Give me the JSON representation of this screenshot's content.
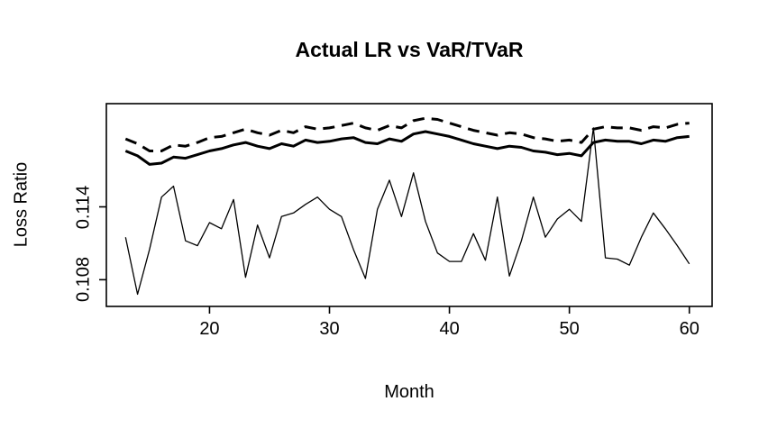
{
  "page": {
    "background": "#ffffff",
    "foreground": "#000000"
  },
  "chart_data": {
    "type": "line",
    "title": "Actual LR vs VaR/TVaR",
    "xlabel": "Month",
    "ylabel": "Loss Ratio",
    "xlim": [
      11.4,
      61.9
    ],
    "ylim": [
      0.1058,
      0.1225
    ],
    "xticks": [
      20,
      30,
      40,
      50,
      60
    ],
    "yticks": [
      0.108,
      0.114
    ],
    "ytick_labels": [
      "0.108",
      "0.114"
    ],
    "grid": false,
    "legend": "none",
    "x": [
      13,
      14,
      15,
      16,
      17,
      18,
      19,
      20,
      21,
      22,
      23,
      24,
      25,
      26,
      27,
      28,
      29,
      30,
      31,
      32,
      33,
      34,
      35,
      36,
      37,
      38,
      39,
      40,
      41,
      42,
      43,
      44,
      45,
      46,
      47,
      48,
      49,
      50,
      51,
      52,
      53,
      54,
      55,
      56,
      57,
      58,
      59,
      60
    ],
    "series": [
      {
        "name": "Actual LR",
        "style": "thin-solid",
        "values": [
          0.1115,
          0.1068,
          0.1105,
          0.1148,
          0.1157,
          0.1112,
          0.1108,
          0.1127,
          0.1122,
          0.1146,
          0.1082,
          0.1125,
          0.1098,
          0.1132,
          0.1135,
          0.1142,
          0.1148,
          0.1138,
          0.1132,
          0.1105,
          0.1081,
          0.1138,
          0.1162,
          0.1132,
          0.1168,
          0.1128,
          0.1102,
          0.1095,
          0.1095,
          0.1118,
          0.1096,
          0.1148,
          0.1083,
          0.1112,
          0.1148,
          0.1115,
          0.113,
          0.1138,
          0.1128,
          0.1205,
          0.1098,
          0.1097,
          0.1092,
          0.1115,
          0.1135,
          0.1122,
          0.1108,
          0.1093
        ]
      },
      {
        "name": "VaR",
        "style": "thick-solid",
        "values": [
          0.1186,
          0.1182,
          0.1175,
          0.1176,
          0.1181,
          0.118,
          0.1183,
          0.1186,
          0.1188,
          0.1191,
          0.1193,
          0.119,
          0.1188,
          0.1192,
          0.119,
          0.1195,
          0.1193,
          0.1194,
          0.1196,
          0.1197,
          0.1193,
          0.1192,
          0.1196,
          0.1194,
          0.12,
          0.1202,
          0.12,
          0.1198,
          0.1195,
          0.1192,
          0.119,
          0.1188,
          0.119,
          0.1189,
          0.1186,
          0.1185,
          0.1183,
          0.1184,
          0.1182,
          0.1193,
          0.1195,
          0.1194,
          0.1194,
          0.1192,
          0.1195,
          0.1194,
          0.1197,
          0.1198
        ]
      },
      {
        "name": "TVaR",
        "style": "thick-dashed",
        "values": [
          0.1196,
          0.1192,
          0.1186,
          0.1186,
          0.1191,
          0.119,
          0.1193,
          0.1197,
          0.1198,
          0.1201,
          0.1204,
          0.1201,
          0.1199,
          0.1203,
          0.1201,
          0.1206,
          0.1204,
          0.1205,
          0.1207,
          0.1209,
          0.1205,
          0.1203,
          0.1207,
          0.1205,
          0.1211,
          0.1213,
          0.1212,
          0.1209,
          0.1206,
          0.1203,
          0.1201,
          0.1199,
          0.1201,
          0.12,
          0.1197,
          0.1196,
          0.1194,
          0.1195,
          0.1193,
          0.1204,
          0.1206,
          0.1205,
          0.1205,
          0.1203,
          0.1206,
          0.1205,
          0.1208,
          0.1209
        ]
      }
    ]
  }
}
